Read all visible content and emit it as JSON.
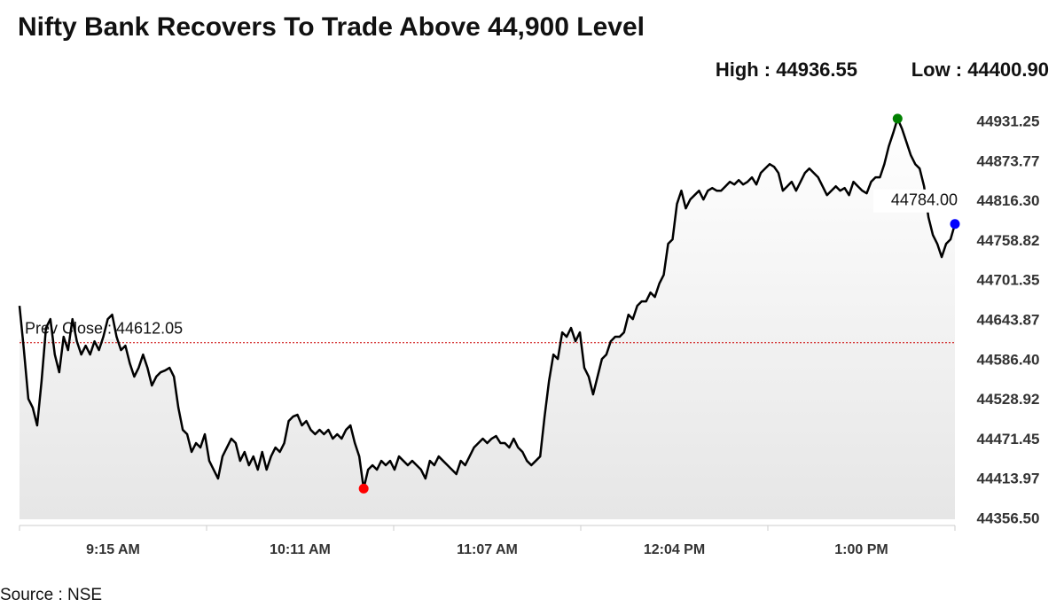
{
  "chart_data": {
    "type": "line",
    "title": "Nifty Bank Recovers To Trade Above 44,900 Level",
    "high_label": "High : 44936.55",
    "low_label": "Low : 44400.90",
    "source": "Source : NSE",
    "x_labels": [
      "9:15 AM",
      "10:11 AM",
      "11:07 AM",
      "12:04 PM",
      "1:00 PM"
    ],
    "series": [
      {
        "color": "#000000",
        "values": [
          44665.5,
          44601.4,
          44530.9,
          44518.1,
          44492.4,
          44556.5,
          44633.5,
          44646.3,
          44595.0,
          44569.4,
          44620.7,
          44601.4,
          44646.3,
          44614.2,
          44595.0,
          44607.8,
          44595.0,
          44614.2,
          44601.4,
          44620.7,
          44646.3,
          44652.7,
          44620.7,
          44601.4,
          44607.8,
          44582.2,
          44563.0,
          44575.8,
          44595.0,
          44575.8,
          44550.1,
          44563.0,
          44569.4,
          44571.9,
          44575.8,
          44563.0,
          44518.1,
          44486.0,
          44479.6,
          44454.0,
          44466.8,
          44460.4,
          44479.6,
          44441.1,
          44428.3,
          44415.5,
          44447.5,
          44460.4,
          44473.2,
          44466.8,
          44441.1,
          44454.0,
          44434.7,
          44447.5,
          44428.3,
          44454.0,
          44428.3,
          44447.5,
          44460.4,
          44454.0,
          44466.8,
          44498.8,
          44505.2,
          44507.8,
          44492.4,
          44498.8,
          44486.0,
          44479.6,
          44486.0,
          44479.6,
          44486.0,
          44473.2,
          44479.6,
          44473.2,
          44486.0,
          44492.4,
          44466.8,
          44447.5,
          44400.9,
          44428.3,
          44434.7,
          44428.3,
          44441.1,
          44434.7,
          44441.1,
          44428.3,
          44447.5,
          44441.1,
          44434.7,
          44441.1,
          44434.7,
          44428.3,
          44415.5,
          44441.1,
          44434.7,
          44447.5,
          44441.1,
          44434.7,
          44428.3,
          44421.9,
          44441.1,
          44434.7,
          44447.5,
          44460.4,
          44466.8,
          44473.2,
          44466.8,
          44473.2,
          44477.0,
          44466.8,
          44466.8,
          44460.4,
          44473.2,
          44460.4,
          44454.0,
          44441.1,
          44434.7,
          44441.1,
          44447.5,
          44505.2,
          44556.5,
          44595.0,
          44588.6,
          44627.1,
          44620.7,
          44633.5,
          44614.2,
          44627.1,
          44575.8,
          44563.0,
          44537.3,
          44563.0,
          44588.6,
          44595.0,
          44614.2,
          44620.7,
          44620.7,
          44627.1,
          44652.7,
          44646.3,
          44665.5,
          44671.9,
          44671.9,
          44684.8,
          44678.4,
          44697.6,
          44710.4,
          44755.3,
          44761.7,
          44813.0,
          44832.2,
          44806.6,
          44819.4,
          44825.8,
          44832.2,
          44819.4,
          44832.2,
          44836.1,
          44832.2,
          44832.2,
          44838.6,
          44845.1,
          44841.2,
          44847.6,
          44841.2,
          44845.1,
          44851.5,
          44841.2,
          44857.9,
          44864.3,
          44870.7,
          44866.9,
          44857.9,
          44832.2,
          44838.6,
          44845.1,
          44832.2,
          44845.1,
          44857.9,
          44864.3,
          44857.9,
          44851.5,
          44838.6,
          44825.8,
          44832.2,
          44838.6,
          44832.2,
          44836.1,
          44825.8,
          44845.1,
          44838.6,
          44832.2,
          44828.4,
          44845.1,
          44851.5,
          44851.5,
          44870.7,
          44896.3,
          44915.6,
          44936.55,
          44922.0,
          44902.8,
          44883.5,
          44870.7,
          44864.3,
          44838.6,
          44793.8,
          44768.1,
          44755.3,
          44736.1,
          44755.3,
          44761.7,
          44784.0
        ]
      }
    ],
    "ylim": [
      44356.5,
      44980
    ],
    "yticks": [
      {
        "value": 44356.5,
        "label": "44356.50"
      },
      44413.97,
      44471.45,
      44528.92,
      {
        "value": 44586.4,
        "label": "44586.40"
      },
      44643.87,
      44701.35,
      44758.82,
      {
        "value": 44816.3,
        "label": "44816.30"
      },
      44873.77,
      44931.25
    ],
    "prev_close": {
      "label": "Prev Close : 44612.05",
      "value": 44612.05,
      "color": "#cc0000"
    },
    "last_label": {
      "label": "44784.00",
      "value": 44784.0
    },
    "high_color": "#008000",
    "low_color": "#ff0000",
    "last_color": "#0000ff"
  }
}
